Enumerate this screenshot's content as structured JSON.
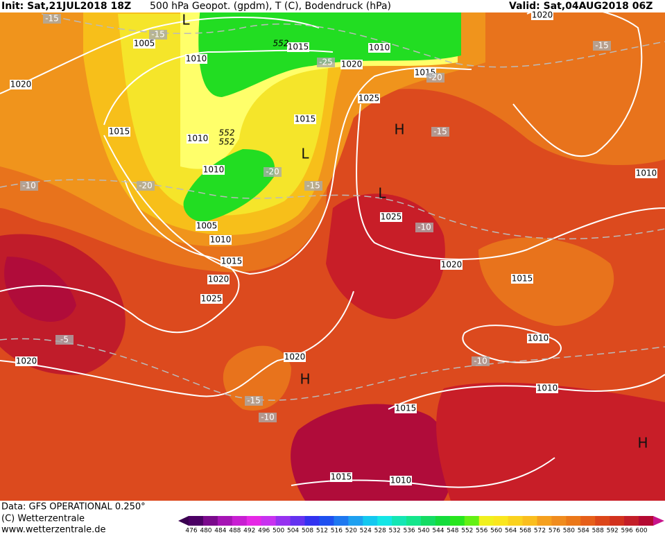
{
  "header": {
    "init": "Init: Sat,21JUL2018 18Z",
    "title": "500 hPa Geopot. (gpdm), T (C), Bodendruck (hPa)",
    "valid": "Valid: Sat,04AUG2018 06Z"
  },
  "footer": {
    "lines": [
      "Data: GFS OPERATIONAL 0.250°",
      "(C) Wetterzentrale",
      "www.wetterzentrale.de"
    ]
  },
  "isobar_labels": [
    "1005",
    "1010",
    "1020",
    "1015",
    "1010",
    "1010",
    "1005",
    "1010",
    "1015",
    "1020",
    "1025",
    "1020",
    "1020",
    "1015",
    "1010",
    "1020",
    "1015",
    "1025",
    "1015",
    "1025",
    "1020",
    "1015",
    "1010",
    "1010",
    "1010",
    "1015",
    "1015",
    "1010",
    "1020"
  ],
  "temperature_labels": [
    "-15",
    "-15",
    "-25",
    "-20",
    "-15",
    "-15",
    "-20",
    "-15",
    "-20",
    "-10",
    "-10",
    "-5",
    "-10",
    "-15",
    "-10"
  ],
  "geopotential_labels": [
    "552",
    "552",
    "552"
  ],
  "pressure_centers": [
    "L",
    "L",
    "L",
    "H",
    "H",
    "H"
  ],
  "colorbar": {
    "levels": [
      476,
      480,
      484,
      488,
      492,
      496,
      500,
      504,
      508,
      512,
      516,
      520,
      524,
      528,
      532,
      536,
      540,
      544,
      548,
      552,
      556,
      560,
      564,
      568,
      572,
      576,
      580,
      584,
      588,
      592,
      596,
      600
    ],
    "colors": [
      "#4b0064",
      "#7a0a8c",
      "#a514b4",
      "#c81ed2",
      "#e628e6",
      "#c832f0",
      "#9632f0",
      "#6432f0",
      "#3232f0",
      "#1e50f0",
      "#1e78f0",
      "#1ea0f0",
      "#14c8f0",
      "#14e6e6",
      "#14e6b4",
      "#14e68c",
      "#14dc64",
      "#14dc3c",
      "#28e61e",
      "#64f014",
      "#f0f01e",
      "#fae61e",
      "#fad21e",
      "#fabe1e",
      "#f5a01e",
      "#f08c1e",
      "#eb7819",
      "#e65f19",
      "#dc4619",
      "#d2321e",
      "#c31e28",
      "#b40a32"
    ]
  }
}
